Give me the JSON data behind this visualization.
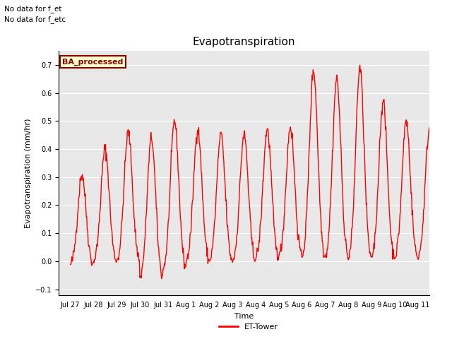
{
  "title": "Evapotranspiration",
  "ylabel": "Evapotranspiration (mm/hr)",
  "xlabel": "Time",
  "ylim": [
    -0.12,
    0.75
  ],
  "yticks": [
    -0.1,
    0.0,
    0.1,
    0.2,
    0.3,
    0.4,
    0.5,
    0.6,
    0.7
  ],
  "line_color": "#ff0000",
  "line_width": 1.0,
  "bg_color": "#e8e8e8",
  "fig_bg": "#ffffff",
  "nodata_text1": "No data for f_et",
  "nodata_text2": "No data for f_etc",
  "legend_label": "BA_processed",
  "legend_text_color": "#8b0000",
  "legend_box_fill": "#ffffcc",
  "legend_box_edge": "#8b0000",
  "et_legend_label": "ET-Tower",
  "xtick_labels": [
    "Jul 27",
    "Jul 28",
    "Jul 29",
    "Jul 30",
    "Jul 31",
    "Aug 1",
    "Aug 2",
    "Aug 3",
    "Aug 4",
    "Aug 5",
    "Aug 6",
    "Aug 7",
    "Aug 8",
    "Aug 9",
    "Aug 10",
    "Aug 11"
  ],
  "daily_peaks": [
    0.31,
    0.4,
    0.46,
    0.44,
    0.5,
    0.47,
    0.45,
    0.45,
    0.47,
    0.48,
    0.68,
    0.65,
    0.69,
    0.57,
    0.5,
    0.47
  ],
  "daily_mins": [
    -0.02,
    -0.01,
    -0.01,
    -0.07,
    -0.04,
    -0.01,
    -0.01,
    -0.01,
    0.0,
    0.01,
    0.0,
    0.0,
    -0.01,
    0.0,
    0.0,
    0.0
  ],
  "pts_per_day": 48,
  "title_fontsize": 11,
  "axis_fontsize": 8,
  "tick_fontsize": 7
}
